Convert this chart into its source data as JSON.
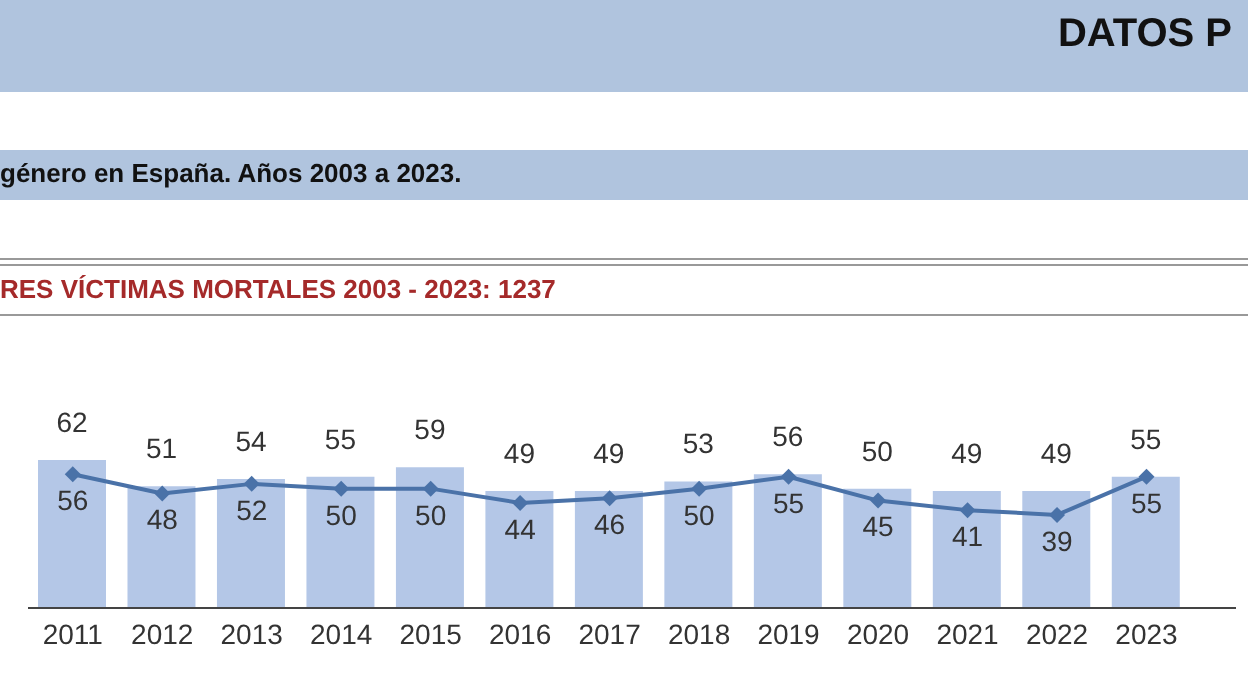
{
  "chart_data": {
    "type": "bar",
    "title": "DATOS P",
    "subtitle": "género en España. Años 2003 a 2023.",
    "annotations": [
      "RES VÍCTIMAS MORTALES 2003 - 2023: 1237"
    ],
    "categories": [
      "2011",
      "2012",
      "2013",
      "2014",
      "2015",
      "2016",
      "2017",
      "2018",
      "2019",
      "2020",
      "2021",
      "2022",
      "2023"
    ],
    "series": [
      {
        "color": "#b4c7e7",
        "values": [
          62,
          51,
          54,
          55,
          59,
          49,
          49,
          53,
          56,
          50,
          49,
          49,
          55
        ]
      },
      {
        "type": "line",
        "color": "#4a72a8",
        "values": [
          56,
          48,
          52,
          50,
          50,
          44,
          46,
          50,
          55,
          45,
          41,
          39,
          55
        ]
      }
    ],
    "tick_labels": "x",
    "data_labels": true,
    "marker": "diamond",
    "line_style": "solid"
  }
}
